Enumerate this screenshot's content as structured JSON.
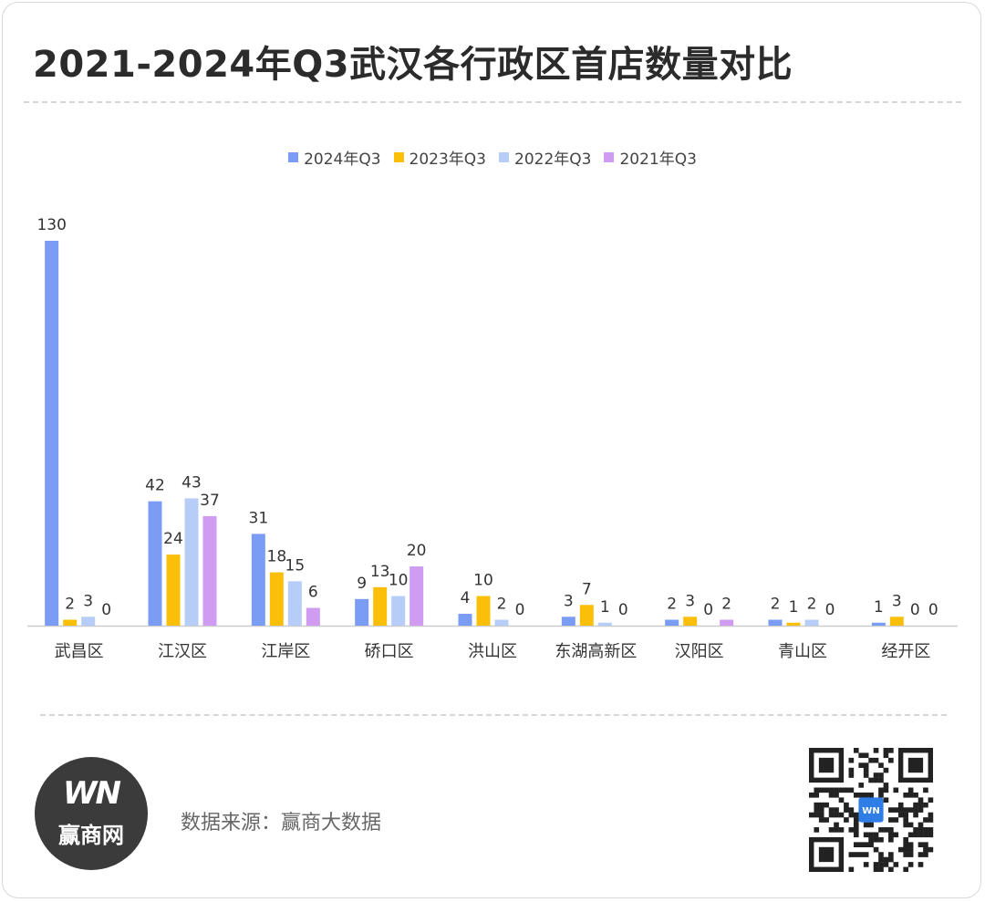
{
  "title": "2021-2024年Q3武汉各行政区首店数量对比",
  "source_text": "数据来源：赢商大数据",
  "logo": {
    "mark": "WN",
    "text": "赢商网",
    "qr_center_text": "WN"
  },
  "colors": {
    "s2024": "#7b9cf5",
    "s2023": "#fbbf0a",
    "s2022": "#b5cdf7",
    "s2021": "#cf9cf2",
    "axis": "#cccccc",
    "label": "#333333"
  },
  "chart_data": {
    "type": "bar",
    "title": "2021-2024年Q3武汉各行政区首店数量对比",
    "xlabel": "",
    "ylabel": "",
    "ylim": [
      0,
      130
    ],
    "grid": false,
    "legend_position": "top-center",
    "categories": [
      "武昌区",
      "江汉区",
      "江岸区",
      "硚口区",
      "洪山区",
      "东湖高新区",
      "汉阳区",
      "青山区",
      "经开区"
    ],
    "series": [
      {
        "name": "2024年Q3",
        "color": "#7b9cf5",
        "values": [
          130,
          42,
          31,
          9,
          4,
          3,
          2,
          2,
          1
        ]
      },
      {
        "name": "2023年Q3",
        "color": "#fbbf0a",
        "values": [
          2,
          24,
          18,
          13,
          10,
          7,
          3,
          1,
          3
        ]
      },
      {
        "name": "2022年Q3",
        "color": "#b5cdf7",
        "values": [
          3,
          43,
          15,
          10,
          2,
          1,
          0,
          2,
          0
        ]
      },
      {
        "name": "2021年Q3",
        "color": "#cf9cf2",
        "values": [
          0,
          37,
          6,
          20,
          0,
          0,
          2,
          0,
          0
        ]
      }
    ]
  }
}
